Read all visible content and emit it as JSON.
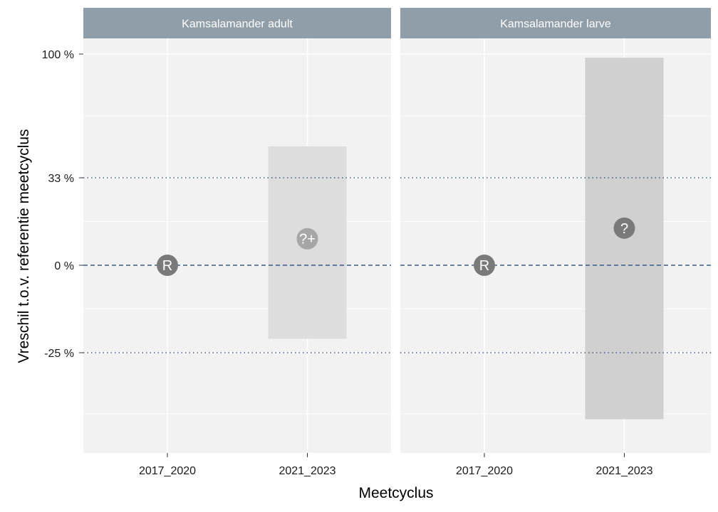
{
  "chart_data": {
    "type": "scatter",
    "x_label": "Meetcyclus",
    "y_label": "Vreschil t.o.v. referentie meetcyclus",
    "y_ticks": [
      {
        "value": 100,
        "label": "100 %"
      },
      {
        "value": 33,
        "label": "33 %"
      },
      {
        "value": 0,
        "label": "0 %"
      },
      {
        "value": -25,
        "label": "-25 %"
      }
    ],
    "reference_lines": [
      {
        "value": 33,
        "style": "dotted"
      },
      {
        "value": 0,
        "style": "dashed"
      },
      {
        "value": -25,
        "style": "dotted"
      }
    ],
    "colors": {
      "panel_background": "#f2f2f2",
      "strip_background": "#8f9ea8",
      "reference_line": "#3b5a85",
      "marker_reference": "#7a7a7a",
      "marker_estimate_light": "#a6a6a6",
      "marker_estimate_dark": "#7a7a7a",
      "interval_light": "#dddddd",
      "interval_dark": "#d0d0d0"
    },
    "panels": [
      {
        "title": "Kamsalamander adult",
        "categories": [
          "2017_2020",
          "2021_2023"
        ],
        "points": [
          {
            "x": "2017_2020",
            "y": 0,
            "label": "R",
            "lower": null,
            "upper": null,
            "shade": "reference"
          },
          {
            "x": "2021_2023",
            "y": 10,
            "label": "?+",
            "lower": -21,
            "upper": 50,
            "shade": "light"
          }
        ]
      },
      {
        "title": "Kamsalamander larve",
        "categories": [
          "2017_2020",
          "2021_2023"
        ],
        "points": [
          {
            "x": "2017_2020",
            "y": 0,
            "label": "R",
            "lower": null,
            "upper": null,
            "shade": "reference"
          },
          {
            "x": "2021_2023",
            "y": 14,
            "label": "?",
            "lower": -44,
            "upper": 98,
            "shade": "dark"
          }
        ]
      }
    ]
  }
}
